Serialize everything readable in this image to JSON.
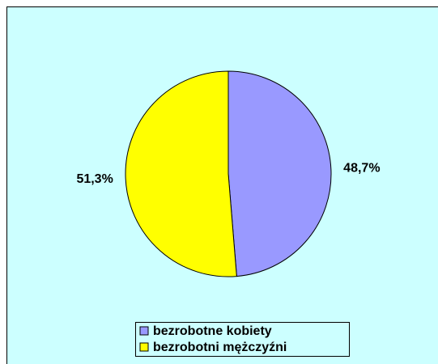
{
  "chart_data": {
    "type": "pie",
    "categories": [
      "bezrobotne kobiety",
      "bezrobotni mężczyźni"
    ],
    "values": [
      48.7,
      51.3
    ],
    "value_labels": [
      "48,7%",
      "51,3%"
    ],
    "colors": [
      "#9999ff",
      "#ffff00"
    ],
    "legend": "bottom"
  }
}
